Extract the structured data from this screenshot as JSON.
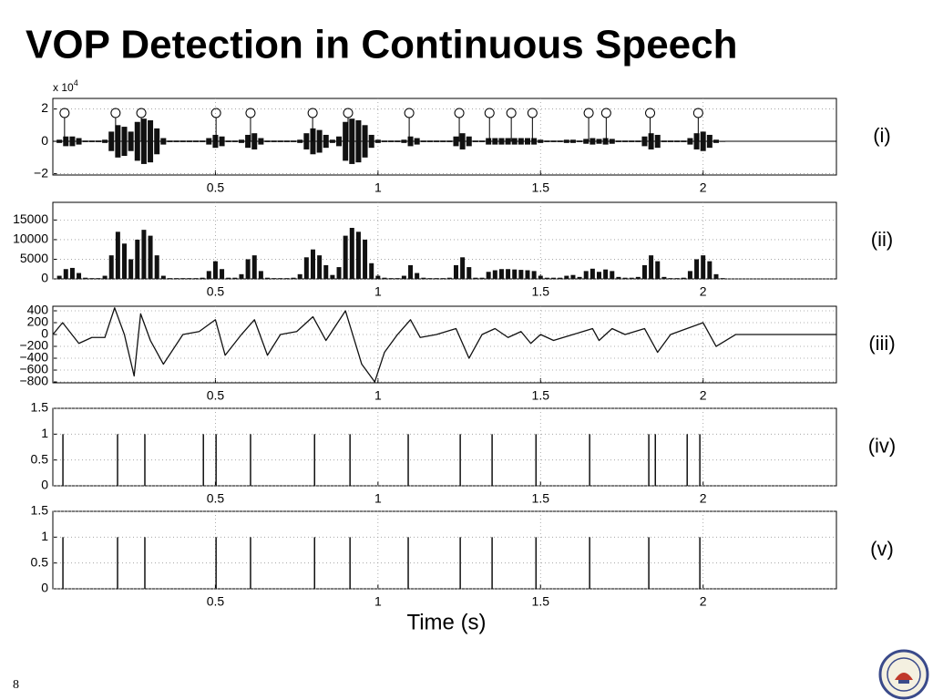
{
  "slide": {
    "title": "VOP Detection in Continuous Speech",
    "number": "8"
  },
  "chart_data": [
    {
      "type": "waveform",
      "label": "(i)",
      "y_scale_label": "x 10",
      "y_scale_exponent": "4",
      "color": "#111111",
      "xlim": [
        0,
        2.41
      ],
      "xticks": [
        0.5,
        1,
        1.5,
        2
      ],
      "ylim": [
        -2.08,
        2.65
      ],
      "yticks": [
        {
          "value": -2,
          "label": "−2"
        },
        0,
        2
      ],
      "grid": true,
      "x": [
        0.02,
        0.04,
        0.06,
        0.08,
        0.1,
        0.12,
        0.14,
        0.16,
        0.18,
        0.2,
        0.22,
        0.24,
        0.26,
        0.28,
        0.3,
        0.32,
        0.34,
        0.36,
        0.38,
        0.4,
        0.42,
        0.44,
        0.46,
        0.48,
        0.5,
        0.52,
        0.54,
        0.56,
        0.58,
        0.6,
        0.62,
        0.64,
        0.66,
        0.68,
        0.7,
        0.72,
        0.74,
        0.76,
        0.78,
        0.8,
        0.82,
        0.84,
        0.86,
        0.88,
        0.9,
        0.92,
        0.94,
        0.96,
        0.98,
        1.0,
        1.02,
        1.04,
        1.06,
        1.08,
        1.1,
        1.12,
        1.14,
        1.16,
        1.18,
        1.2,
        1.22,
        1.24,
        1.26,
        1.28,
        1.3,
        1.32,
        1.34,
        1.36,
        1.38,
        1.4,
        1.42,
        1.44,
        1.46,
        1.48,
        1.5,
        1.52,
        1.54,
        1.56,
        1.58,
        1.6,
        1.62,
        1.64,
        1.66,
        1.68,
        1.7,
        1.72,
        1.74,
        1.76,
        1.78,
        1.8,
        1.82,
        1.84,
        1.86,
        1.88,
        1.9,
        1.92,
        1.94,
        1.96,
        1.98,
        2.0,
        2.02,
        2.04,
        2.06
      ],
      "values": [
        0.1,
        0.3,
        0.3,
        0.2,
        0.05,
        0.05,
        0.05,
        0.1,
        0.6,
        1.0,
        0.9,
        0.6,
        1.2,
        1.4,
        1.3,
        0.8,
        0.2,
        0.05,
        0.05,
        0.05,
        0.05,
        0.05,
        0.05,
        0.2,
        0.4,
        0.3,
        0.05,
        0.05,
        0.1,
        0.4,
        0.5,
        0.2,
        0.05,
        0.05,
        0.05,
        0.05,
        0.05,
        0.1,
        0.5,
        0.8,
        0.7,
        0.4,
        0.1,
        0.3,
        1.2,
        1.4,
        1.3,
        1.0,
        0.4,
        0.1,
        0.05,
        0.05,
        0.05,
        0.1,
        0.3,
        0.2,
        0.05,
        0.05,
        0.05,
        0.05,
        0.05,
        0.3,
        0.5,
        0.3,
        0.05,
        0.05,
        0.2,
        0.2,
        0.2,
        0.2,
        0.2,
        0.2,
        0.2,
        0.2,
        0.1,
        0.05,
        0.05,
        0.05,
        0.1,
        0.1,
        0.05,
        0.15,
        0.2,
        0.15,
        0.2,
        0.15,
        0.05,
        0.05,
        0.05,
        0.05,
        0.3,
        0.5,
        0.4,
        0.05,
        0.05,
        0.05,
        0.05,
        0.2,
        0.5,
        0.6,
        0.4,
        0.1,
        0.02
      ],
      "markers": {
        "x": [
          0.036,
          0.193,
          0.272,
          0.502,
          0.608,
          0.799,
          0.908,
          1.096,
          1.25,
          1.343,
          1.41,
          1.475,
          1.648,
          1.702,
          1.837,
          1.985
        ],
        "values": [
          1.75,
          1.75,
          1.75,
          1.75,
          1.75,
          1.75,
          1.75,
          1.75,
          1.75,
          1.75,
          1.75,
          1.75,
          1.75,
          1.75,
          1.75,
          1.75
        ]
      }
    },
    {
      "type": "bar",
      "label": "(ii)",
      "color": "#111111",
      "xlim": [
        0,
        2.41
      ],
      "xticks": [
        0.5,
        1,
        1.5,
        2
      ],
      "ylim": [
        0,
        19500
      ],
      "yticks": [
        0,
        5000,
        10000,
        15000
      ],
      "grid": true,
      "x": [
        0.02,
        0.04,
        0.06,
        0.08,
        0.1,
        0.12,
        0.14,
        0.16,
        0.18,
        0.2,
        0.22,
        0.24,
        0.26,
        0.28,
        0.3,
        0.32,
        0.34,
        0.36,
        0.38,
        0.4,
        0.42,
        0.44,
        0.46,
        0.48,
        0.5,
        0.52,
        0.54,
        0.56,
        0.58,
        0.6,
        0.62,
        0.64,
        0.66,
        0.68,
        0.7,
        0.72,
        0.74,
        0.76,
        0.78,
        0.8,
        0.82,
        0.84,
        0.86,
        0.88,
        0.9,
        0.92,
        0.94,
        0.96,
        0.98,
        1.0,
        1.02,
        1.04,
        1.06,
        1.08,
        1.1,
        1.12,
        1.14,
        1.16,
        1.18,
        1.2,
        1.22,
        1.24,
        1.26,
        1.28,
        1.3,
        1.32,
        1.34,
        1.36,
        1.38,
        1.4,
        1.42,
        1.44,
        1.46,
        1.48,
        1.5,
        1.52,
        1.54,
        1.56,
        1.58,
        1.6,
        1.62,
        1.64,
        1.66,
        1.68,
        1.7,
        1.72,
        1.74,
        1.76,
        1.78,
        1.8,
        1.82,
        1.84,
        1.86,
        1.88,
        1.9,
        1.92,
        1.94,
        1.96,
        1.98,
        2.0,
        2.02,
        2.04,
        2.06
      ],
      "values": [
        800,
        2500,
        2800,
        1500,
        300,
        200,
        200,
        800,
        6000,
        12000,
        9000,
        5000,
        10000,
        12500,
        11000,
        6000,
        800,
        200,
        200,
        200,
        200,
        200,
        300,
        2000,
        4500,
        2500,
        300,
        300,
        1200,
        5000,
        6000,
        2000,
        300,
        200,
        200,
        200,
        300,
        1200,
        5500,
        7500,
        6000,
        3500,
        1000,
        3000,
        11000,
        13000,
        12000,
        10000,
        4000,
        800,
        300,
        200,
        200,
        800,
        3500,
        1500,
        300,
        200,
        200,
        200,
        300,
        3500,
        5500,
        3000,
        300,
        300,
        1800,
        2200,
        2500,
        2500,
        2400,
        2300,
        2200,
        2000,
        800,
        300,
        300,
        300,
        800,
        1000,
        500,
        2000,
        2600,
        1800,
        2400,
        2000,
        500,
        300,
        300,
        500,
        3500,
        6000,
        4500,
        500,
        200,
        200,
        300,
        2000,
        5000,
        6000,
        4500,
        1200,
        200
      ]
    },
    {
      "type": "line",
      "label": "(iii)",
      "color": "#111111",
      "xlim": [
        0,
        2.41
      ],
      "xticks": [
        0.5,
        1,
        1.5,
        2
      ],
      "ylim": [
        -815,
        477
      ],
      "yticks": [
        {
          "value": -800,
          "label": "−800"
        },
        {
          "value": -600,
          "label": "−600"
        },
        {
          "value": -400,
          "label": "−400"
        },
        {
          "value": -200,
          "label": "−200"
        },
        0,
        200,
        400
      ],
      "grid": true,
      "x": [
        0,
        0.03,
        0.08,
        0.12,
        0.16,
        0.19,
        0.22,
        0.25,
        0.27,
        0.3,
        0.34,
        0.4,
        0.45,
        0.5,
        0.53,
        0.58,
        0.62,
        0.66,
        0.7,
        0.75,
        0.8,
        0.84,
        0.9,
        0.95,
        0.99,
        1.02,
        1.06,
        1.1,
        1.13,
        1.18,
        1.24,
        1.28,
        1.32,
        1.36,
        1.4,
        1.44,
        1.47,
        1.5,
        1.54,
        1.6,
        1.66,
        1.68,
        1.72,
        1.76,
        1.82,
        1.86,
        1.9,
        1.95,
        2.0,
        2.04,
        2.1,
        2.41
      ],
      "values": [
        0,
        200,
        -150,
        -50,
        -50,
        450,
        0,
        -700,
        350,
        -100,
        -500,
        0,
        50,
        250,
        -350,
        0,
        250,
        -350,
        0,
        50,
        300,
        -100,
        400,
        -500,
        -800,
        -300,
        0,
        250,
        -50,
        0,
        100,
        -400,
        0,
        100,
        -50,
        50,
        -150,
        0,
        -100,
        0,
        100,
        -100,
        100,
        0,
        100,
        -300,
        0,
        100,
        200,
        -200,
        0,
        0
      ]
    },
    {
      "type": "stem",
      "label": "(iv)",
      "color": "#111111",
      "xlim": [
        0,
        2.41
      ],
      "xticks": [
        0.5,
        1,
        1.5,
        2
      ],
      "ylim": [
        0,
        1.5
      ],
      "yticks": [
        0,
        0.5,
        1,
        1.5
      ],
      "grid": true,
      "x": [
        0.031,
        0.199,
        0.283,
        0.463,
        0.502,
        0.608,
        0.805,
        0.914,
        1.093,
        1.253,
        1.351,
        1.486,
        1.651,
        1.833,
        1.853,
        1.951,
        1.99
      ],
      "values": [
        1,
        1,
        1,
        1,
        1,
        1,
        1,
        1,
        1,
        1,
        1,
        1,
        1,
        1,
        1,
        1,
        1
      ]
    },
    {
      "type": "stem",
      "label": "(v)",
      "color": "#111111",
      "xlabel": "Time (s)",
      "xlim": [
        0,
        2.41
      ],
      "xticks": [
        0.5,
        1,
        1.5,
        2
      ],
      "ylim": [
        0,
        1.5
      ],
      "yticks": [
        0,
        0.5,
        1,
        1.5
      ],
      "grid": true,
      "x": [
        0.031,
        0.199,
        0.283,
        0.502,
        0.608,
        0.805,
        0.914,
        1.093,
        1.253,
        1.351,
        1.486,
        1.651,
        1.833,
        1.99
      ],
      "values": [
        1,
        1,
        1,
        1,
        1,
        1,
        1,
        1,
        1,
        1,
        1,
        1,
        1,
        1
      ]
    }
  ]
}
